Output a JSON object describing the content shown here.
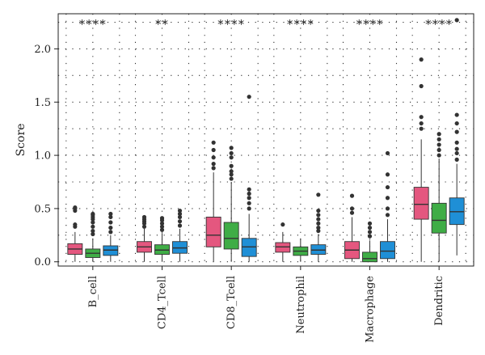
{
  "chart_data": {
    "type": "box",
    "ylabel": "Score",
    "categories": [
      "B_cell",
      "CD4_Tcell",
      "CD8_Tcell",
      "Neutrophil",
      "Macrophage",
      "Dendritic"
    ],
    "significance": [
      "****",
      "**",
      "****",
      "****",
      "****",
      "****"
    ],
    "yticks": [
      "0.0",
      "0.5",
      "1.0",
      "1.5",
      "2.0"
    ],
    "ylim": [
      -0.04,
      2.33
    ],
    "grid": true,
    "colors": [
      "#e4577f",
      "#3fad46",
      "#1f8fd6"
    ],
    "groups": [
      {
        "category": "B_cell",
        "boxes": [
          {
            "whisker_low": 0.0,
            "q1": 0.07,
            "median": 0.12,
            "q3": 0.17,
            "whisker_high": 0.28,
            "outliers": [
              0.33,
              0.35,
              0.48,
              0.5,
              0.51
            ]
          },
          {
            "whisker_low": 0.0,
            "q1": 0.04,
            "median": 0.08,
            "q3": 0.12,
            "whisker_high": 0.22,
            "outliers": [
              0.26,
              0.29,
              0.33,
              0.37,
              0.4,
              0.42,
              0.44,
              0.45
            ]
          },
          {
            "whisker_low": 0.0,
            "q1": 0.06,
            "median": 0.11,
            "q3": 0.15,
            "whisker_high": 0.25,
            "outliers": [
              0.28,
              0.32,
              0.37,
              0.42,
              0.45
            ]
          }
        ]
      },
      {
        "category": "CD4_Tcell",
        "boxes": [
          {
            "whisker_low": 0.0,
            "q1": 0.09,
            "median": 0.14,
            "q3": 0.19,
            "whisker_high": 0.31,
            "outliers": [
              0.33,
              0.36,
              0.38,
              0.4,
              0.42
            ]
          },
          {
            "whisker_low": 0.0,
            "q1": 0.07,
            "median": 0.11,
            "q3": 0.16,
            "whisker_high": 0.27,
            "outliers": [
              0.3,
              0.33,
              0.36,
              0.39,
              0.41
            ]
          },
          {
            "whisker_low": 0.0,
            "q1": 0.08,
            "median": 0.13,
            "q3": 0.19,
            "whisker_high": 0.31,
            "outliers": [
              0.34,
              0.38,
              0.42,
              0.45,
              0.48
            ]
          }
        ]
      },
      {
        "category": "CD8_Tcell",
        "boxes": [
          {
            "whisker_low": 0.0,
            "q1": 0.14,
            "median": 0.25,
            "q3": 0.42,
            "whisker_high": 0.84,
            "outliers": [
              0.88,
              0.92,
              0.98,
              1.05,
              1.12
            ]
          },
          {
            "whisker_low": 0.0,
            "q1": 0.12,
            "median": 0.22,
            "q3": 0.37,
            "whisker_high": 0.75,
            "outliers": [
              0.78,
              0.82,
              0.85,
              0.9,
              0.98,
              1.02,
              1.07
            ]
          },
          {
            "whisker_low": 0.0,
            "q1": 0.05,
            "median": 0.14,
            "q3": 0.22,
            "whisker_high": 0.45,
            "outliers": [
              0.5,
              0.55,
              0.6,
              0.64,
              0.68,
              1.55
            ]
          }
        ]
      },
      {
        "category": "Neutrophil",
        "boxes": [
          {
            "whisker_low": 0.0,
            "q1": 0.09,
            "median": 0.14,
            "q3": 0.18,
            "whisker_high": 0.28,
            "outliers": [
              0.35
            ]
          },
          {
            "whisker_low": 0.0,
            "q1": 0.06,
            "median": 0.1,
            "q3": 0.14,
            "whisker_high": 0.22,
            "outliers": []
          },
          {
            "whisker_low": 0.0,
            "q1": 0.07,
            "median": 0.11,
            "q3": 0.16,
            "whisker_high": 0.26,
            "outliers": [
              0.29,
              0.32,
              0.36,
              0.4,
              0.44,
              0.48,
              0.63
            ]
          }
        ]
      },
      {
        "category": "Macrophage",
        "boxes": [
          {
            "whisker_low": 0.0,
            "q1": 0.03,
            "median": 0.11,
            "q3": 0.19,
            "whisker_high": 0.42,
            "outliers": [
              0.46,
              0.5,
              0.62
            ]
          },
          {
            "whisker_low": 0.0,
            "q1": 0.0,
            "median": 0.03,
            "q3": 0.09,
            "whisker_high": 0.2,
            "outliers": [
              0.24,
              0.28,
              0.32,
              0.36
            ]
          },
          {
            "whisker_low": 0.0,
            "q1": 0.03,
            "median": 0.1,
            "q3": 0.19,
            "whisker_high": 0.4,
            "outliers": [
              0.44,
              0.5,
              0.6,
              0.7,
              0.82,
              1.02
            ]
          }
        ]
      },
      {
        "category": "Dendritic",
        "boxes": [
          {
            "whisker_low": 0.0,
            "q1": 0.4,
            "median": 0.54,
            "q3": 0.7,
            "whisker_high": 1.15,
            "outliers": [
              1.25,
              1.3,
              1.36,
              1.65,
              1.9
            ]
          },
          {
            "whisker_low": 0.0,
            "q1": 0.27,
            "median": 0.39,
            "q3": 0.55,
            "whisker_high": 0.97,
            "outliers": [
              1.0,
              1.05,
              1.1,
              1.15,
              1.2
            ]
          },
          {
            "whisker_low": 0.06,
            "q1": 0.35,
            "median": 0.47,
            "q3": 0.6,
            "whisker_high": 0.92,
            "outliers": [
              0.96,
              1.02,
              1.06,
              1.12,
              1.22,
              1.3,
              1.38,
              2.27
            ]
          }
        ]
      }
    ]
  }
}
